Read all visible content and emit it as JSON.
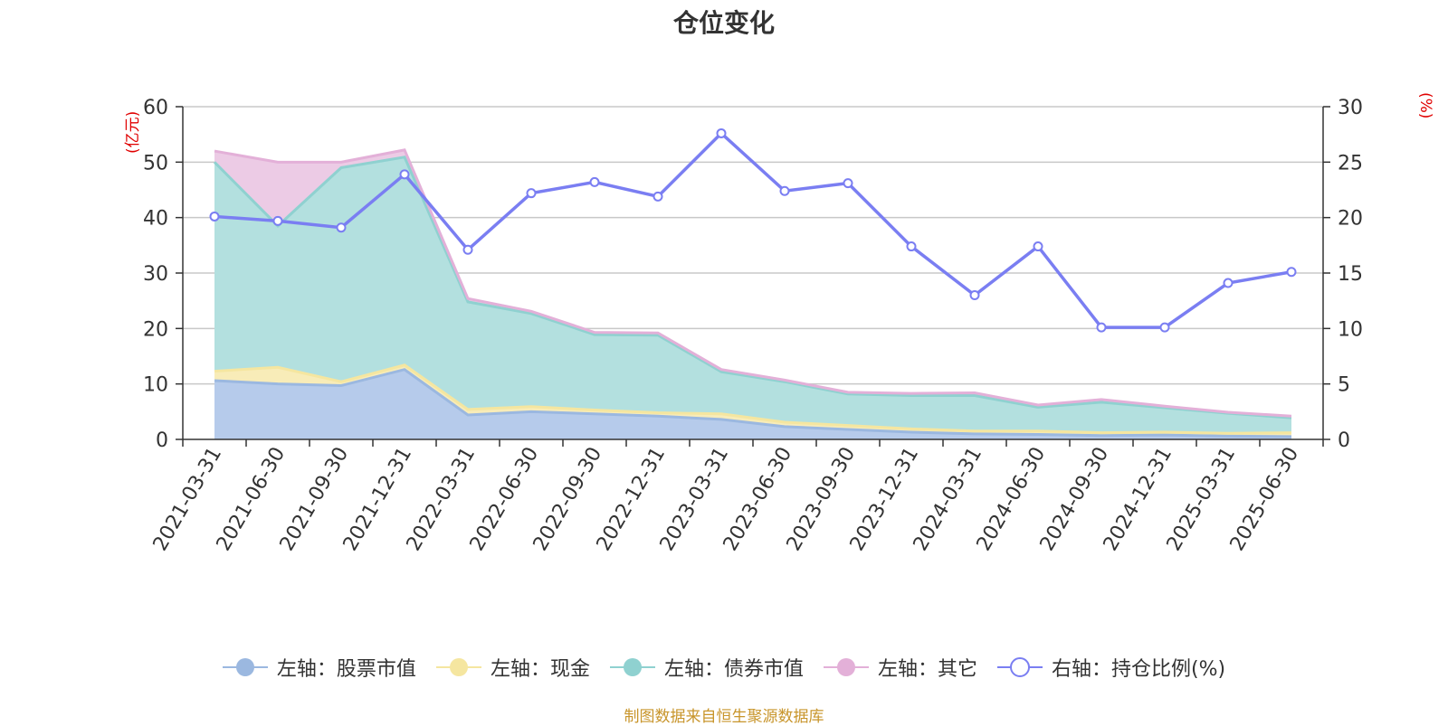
{
  "title": "仓位变化",
  "source_note": "制图数据来自恒生聚源数据库",
  "left_axis_unit": "(亿元)",
  "right_axis_unit": "(%)",
  "chart_data": {
    "type": "area",
    "categories": [
      "2021-03-31",
      "2021-06-30",
      "2021-09-30",
      "2021-12-31",
      "2022-03-31",
      "2022-06-30",
      "2022-09-30",
      "2022-12-31",
      "2023-03-31",
      "2023-06-30",
      "2023-09-30",
      "2023-12-31",
      "2024-03-31",
      "2024-06-30",
      "2024-09-30",
      "2024-12-31",
      "2025-03-31",
      "2025-06-30"
    ],
    "y_left": {
      "min": 0,
      "max": 60,
      "ticks": [
        0,
        10,
        20,
        30,
        40,
        50,
        60
      ]
    },
    "y_right": {
      "min": 0,
      "max": 30,
      "ticks": [
        0,
        5,
        10,
        15,
        20,
        25,
        30
      ]
    },
    "grid": true,
    "legend_position": "bottom",
    "series": [
      {
        "name": "左轴：股票市值",
        "axis": "left",
        "stack": true,
        "color": "#9bb8e0",
        "fill": "#b6cbeb",
        "values": [
          10.6,
          10.0,
          9.7,
          12.6,
          4.4,
          5.0,
          4.6,
          4.2,
          3.6,
          2.3,
          1.8,
          1.3,
          1.0,
          0.9,
          0.7,
          0.8,
          0.6,
          0.5
        ]
      },
      {
        "name": "左轴：现金",
        "axis": "left",
        "stack": true,
        "color": "#f5e6a0",
        "fill": "#f8ecb8",
        "values": [
          1.7,
          3.0,
          0.7,
          0.8,
          1.0,
          0.9,
          0.7,
          0.6,
          1.0,
          0.8,
          0.7,
          0.6,
          0.5,
          0.6,
          0.5,
          0.5,
          0.5,
          0.7
        ]
      },
      {
        "name": "左轴：债券市值",
        "axis": "left",
        "stack": true,
        "color": "#8fd1d0",
        "fill": "#b3e0df",
        "values": [
          37.7,
          25.5,
          38.6,
          37.5,
          19.4,
          16.8,
          13.6,
          14.0,
          7.6,
          7.3,
          5.7,
          6.0,
          6.4,
          4.3,
          5.5,
          4.4,
          3.6,
          2.7
        ]
      },
      {
        "name": "左轴：其它",
        "axis": "left",
        "stack": true,
        "color": "#e3b0d8",
        "fill": "#eccbe5",
        "values": [
          2.0,
          11.5,
          1.0,
          1.3,
          0.6,
          0.4,
          0.4,
          0.4,
          0.4,
          0.3,
          0.3,
          0.4,
          0.5,
          0.4,
          0.5,
          0.3,
          0.2,
          0.3
        ]
      },
      {
        "name": "右轴：持仓比例(%)",
        "axis": "right",
        "type": "line",
        "color": "#7a7ef2",
        "values": [
          20.1,
          19.7,
          19.1,
          23.9,
          17.1,
          22.2,
          23.2,
          21.9,
          27.6,
          22.4,
          23.1,
          17.4,
          13.0,
          17.4,
          10.1,
          10.1,
          14.1,
          15.1
        ]
      }
    ]
  }
}
